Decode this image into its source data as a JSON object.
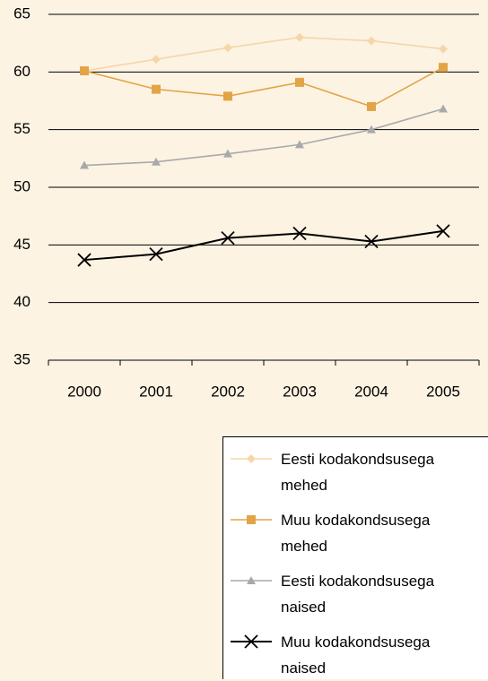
{
  "chart_data": {
    "type": "line",
    "categories": [
      "2000",
      "2001",
      "2002",
      "2003",
      "2004",
      "2005"
    ],
    "series": [
      {
        "name": "Eesti kodakondsusega mehed",
        "color": "#f6d6a9",
        "marker": "diamond",
        "values": [
          60.1,
          61.1,
          62.1,
          63.0,
          62.7,
          62.0
        ]
      },
      {
        "name": "Muu kodakondsusega mehed",
        "color": "#e2a446",
        "marker": "square",
        "values": [
          60.1,
          58.5,
          57.9,
          59.1,
          57.0,
          60.4
        ]
      },
      {
        "name": "Eesti kodakondsusega naised",
        "color": "#a9a9a9",
        "marker": "triangle",
        "values": [
          51.9,
          52.2,
          52.9,
          53.7,
          55.0,
          56.8
        ]
      },
      {
        "name": "Muu kodakondsusega naised",
        "color": "#000000",
        "marker": "x",
        "values": [
          43.7,
          44.2,
          45.6,
          46.0,
          45.3,
          46.2
        ]
      }
    ],
    "ylim": [
      35,
      65
    ],
    "yticks": [
      35,
      40,
      45,
      50,
      55,
      60,
      65
    ],
    "grid": true
  }
}
